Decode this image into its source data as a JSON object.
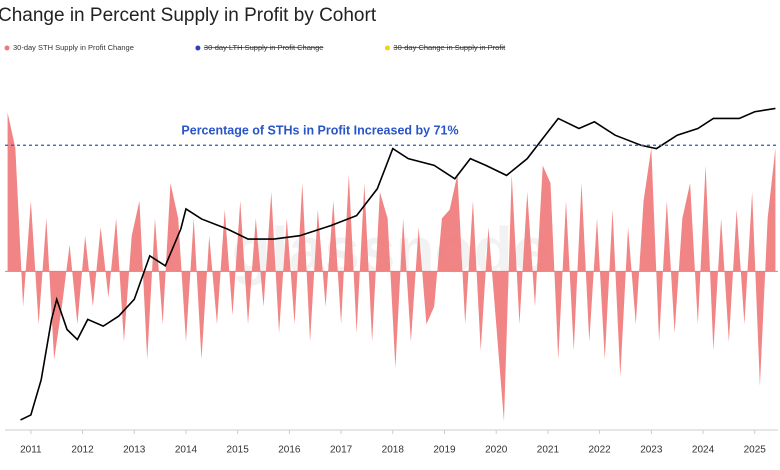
{
  "chart_data": {
    "type": "area-line",
    "title": "Change in Percent Supply in Profit by Cohort",
    "watermark": "glassnode",
    "legend": [
      {
        "name": "30-day STH Supply in Profit Change",
        "color": "#f07878",
        "hidden": false
      },
      {
        "name": "30-day LTH Supply in Profit Change",
        "color": "#2a3fc4",
        "hidden": true
      },
      {
        "name": "30-day Change in Supply in Profit",
        "color": "#f2d21b",
        "hidden": true
      }
    ],
    "annotation": {
      "text": "Percentage of STHs in Profit Increased by 71%",
      "y2": 85,
      "color": "#2a55c8"
    },
    "xlim": [
      2010.5,
      2025.45
    ],
    "xticks": [
      2011,
      2012,
      2013,
      2014,
      2015,
      2016,
      2017,
      2018,
      2019,
      2020,
      2021,
      2022,
      2023,
      2024,
      2025
    ],
    "ylim": [
      -0.9,
      1
    ],
    "y2lim": [
      0,
      100
    ],
    "series": [
      {
        "name": "30-day STH Supply in Profit Change",
        "color": "#f07878",
        "x": [
          2010.55,
          2010.7,
          2010.85,
          2011.0,
          2011.15,
          2011.3,
          2011.45,
          2011.6,
          2011.75,
          2011.9,
          2012.05,
          2012.2,
          2012.35,
          2012.5,
          2012.65,
          2012.8,
          2012.95,
          2013.1,
          2013.25,
          2013.4,
          2013.55,
          2013.7,
          2013.85,
          2014.0,
          2014.15,
          2014.3,
          2014.45,
          2014.6,
          2014.75,
          2014.9,
          2015.05,
          2015.2,
          2015.35,
          2015.5,
          2015.65,
          2015.8,
          2015.95,
          2016.1,
          2016.25,
          2016.4,
          2016.55,
          2016.7,
          2016.85,
          2017.0,
          2017.15,
          2017.3,
          2017.45,
          2017.6,
          2017.75,
          2017.9,
          2018.05,
          2018.2,
          2018.35,
          2018.5,
          2018.65,
          2018.8,
          2018.95,
          2019.1,
          2019.25,
          2019.4,
          2019.55,
          2019.7,
          2019.85,
          2020.0,
          2020.15,
          2020.3,
          2020.45,
          2020.6,
          2020.75,
          2020.9,
          2021.05,
          2021.2,
          2021.35,
          2021.5,
          2021.65,
          2021.8,
          2021.95,
          2022.1,
          2022.25,
          2022.4,
          2022.55,
          2022.7,
          2022.85,
          2023.0,
          2023.15,
          2023.3,
          2023.45,
          2023.6,
          2023.75,
          2023.9,
          2024.05,
          2024.2,
          2024.35,
          2024.5,
          2024.65,
          2024.8,
          2024.95,
          2025.1,
          2025.25,
          2025.4
        ],
        "values": [
          0.9,
          0.7,
          -0.2,
          0.4,
          -0.3,
          0.3,
          -0.5,
          -0.2,
          0.15,
          -0.3,
          0.2,
          -0.2,
          0.25,
          -0.15,
          0.3,
          -0.4,
          0.2,
          0.4,
          -0.5,
          0.3,
          -0.3,
          0.5,
          0.3,
          -0.4,
          0.3,
          -0.5,
          0.2,
          -0.3,
          0.35,
          -0.25,
          0.4,
          -0.3,
          0.3,
          -0.2,
          0.45,
          -0.35,
          0.3,
          -0.3,
          0.5,
          -0.4,
          0.35,
          -0.2,
          0.4,
          -0.3,
          0.55,
          -0.35,
          0.5,
          -0.4,
          0.45,
          0.3,
          -0.55,
          0.3,
          -0.4,
          0.25,
          -0.3,
          -0.2,
          0.3,
          0.35,
          0.55,
          -0.3,
          0.4,
          -0.45,
          0.25,
          -0.3,
          -0.85,
          0.55,
          -0.3,
          0.45,
          -0.2,
          0.6,
          0.5,
          -0.5,
          0.4,
          -0.45,
          0.5,
          -0.4,
          0.3,
          -0.5,
          0.35,
          -0.6,
          0.25,
          -0.3,
          0.4,
          0.7,
          -0.4,
          0.4,
          -0.35,
          0.3,
          0.5,
          -0.3,
          0.6,
          -0.45,
          0.3,
          -0.4,
          0.35,
          -0.3,
          0.45,
          -0.65,
          0.3,
          0.7
        ]
      },
      {
        "color": "#000000",
        "axis": "y2",
        "x": [
          2010.8,
          2011.0,
          2011.2,
          2011.4,
          2011.5,
          2011.7,
          2011.9,
          2012.1,
          2012.4,
          2012.7,
          2013.0,
          2013.3,
          2013.6,
          2013.9,
          2014.0,
          2014.3,
          2014.8,
          2015.2,
          2015.7,
          2016.2,
          2016.8,
          2017.3,
          2017.7,
          2018.0,
          2018.3,
          2018.8,
          2019.2,
          2019.5,
          2019.8,
          2020.2,
          2020.6,
          2020.9,
          2021.2,
          2021.6,
          2021.9,
          2022.3,
          2022.8,
          2023.1,
          2023.5,
          2023.9,
          2024.2,
          2024.7,
          2025.0,
          2025.4
        ],
        "values": [
          3,
          4.5,
          15,
          33,
          39,
          30,
          27,
          33,
          31,
          34,
          39,
          52,
          49,
          60,
          66,
          63,
          60,
          57,
          57,
          58,
          61,
          64,
          72,
          84,
          81,
          79,
          75,
          81,
          79,
          76,
          81,
          87,
          93,
          90,
          92,
          88,
          85,
          84,
          88,
          90,
          93,
          93,
          95,
          96
        ]
      }
    ]
  }
}
